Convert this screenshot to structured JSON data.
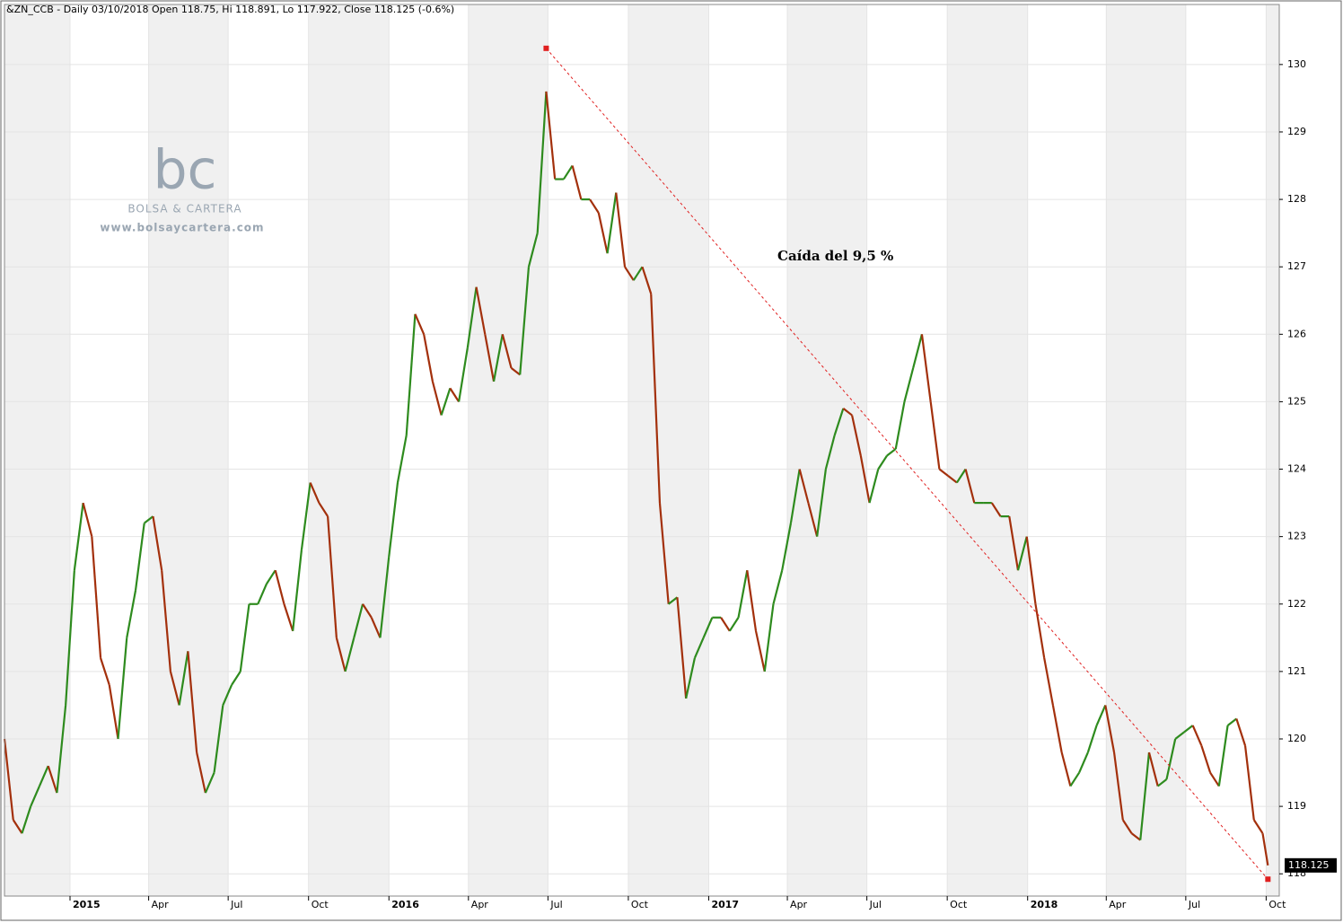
{
  "chart_data": {
    "type": "price-line",
    "title": "&ZN_CCB - Daily 03/10/2018 Open 118.75, Hi 118.891, Lo 117.922, Close 118.125 (-0.6%)",
    "annotation": "Caída del 9,5 %",
    "watermark": {
      "logo": "bc",
      "brand": "BOLSA & CARTERA",
      "url": "www.bolsaycartera.com"
    },
    "x": [
      -75,
      -65,
      -55,
      -45,
      -35,
      -25,
      -15,
      -5,
      5,
      15,
      25,
      35,
      45,
      55,
      65,
      75,
      85,
      95,
      105,
      115,
      125,
      135,
      145,
      155,
      165,
      175,
      185,
      195,
      205,
      215,
      225,
      235,
      245,
      255,
      265,
      275,
      285,
      295,
      305,
      315,
      325,
      335,
      345,
      355,
      365,
      375,
      385,
      395,
      405,
      415,
      425,
      435,
      445,
      455,
      465,
      475,
      485,
      495,
      505,
      515,
      525,
      535,
      545,
      555,
      565,
      575,
      585,
      595,
      605,
      615,
      625,
      635,
      645,
      655,
      665,
      675,
      685,
      695,
      705,
      715,
      725,
      735,
      745,
      755,
      765,
      775,
      785,
      795,
      805,
      815,
      825,
      835,
      845,
      855,
      865,
      875,
      885,
      895,
      905,
      915,
      925,
      935,
      945,
      955,
      965,
      975,
      985,
      995,
      1005,
      1015,
      1025,
      1035,
      1045,
      1055,
      1065,
      1075,
      1085,
      1095,
      1105,
      1115,
      1125,
      1135,
      1145,
      1155,
      1165,
      1175,
      1185,
      1195,
      1205,
      1215,
      1225,
      1235,
      1245,
      1255,
      1265,
      1275,
      1285,
      1295,
      1305,
      1315,
      1325,
      1335,
      1345,
      1355,
      1365,
      1371
    ],
    "series": [
      {
        "name": "&ZN_CCB",
        "values": [
          120,
          118.8,
          118.6,
          119.0,
          119.3,
          119.6,
          119.2,
          120.5,
          122.5,
          123.5,
          123.0,
          121.2,
          120.8,
          120.0,
          121.5,
          122.2,
          123.2,
          123.3,
          122.5,
          121.0,
          120.5,
          121.3,
          119.8,
          119.2,
          119.5,
          120.5,
          120.8,
          121.0,
          122.0,
          122.0,
          122.3,
          122.5,
          122.0,
          121.6,
          122.8,
          123.8,
          123.5,
          123.3,
          121.5,
          121.0,
          121.5,
          122.0,
          121.8,
          121.5,
          122.7,
          123.8,
          124.5,
          126.3,
          126.0,
          125.3,
          124.8,
          125.2,
          125.0,
          125.8,
          126.7,
          126.0,
          125.3,
          126.0,
          125.5,
          125.4,
          127.0,
          127.5,
          129.6,
          128.3,
          128.3,
          128.5,
          128.0,
          128.0,
          127.8,
          127.2,
          128.1,
          127.0,
          126.8,
          127.0,
          126.6,
          123.5,
          122.0,
          122.1,
          120.6,
          121.2,
          121.5,
          121.8,
          121.8,
          121.6,
          121.8,
          122.5,
          121.6,
          121.0,
          122.0,
          122.5,
          123.2,
          124.0,
          123.5,
          123.0,
          124.0,
          124.5,
          124.9,
          124.8,
          124.2,
          123.5,
          124.0,
          124.2,
          124.3,
          125.0,
          125.5,
          126.0,
          125.0,
          124.0,
          123.9,
          123.8,
          124.0,
          123.5,
          123.5,
          123.5,
          123.3,
          123.3,
          122.5,
          123.0,
          122.0,
          121.2,
          120.5,
          119.8,
          119.3,
          119.5,
          119.8,
          120.2,
          120.5,
          119.8,
          118.8,
          118.6,
          118.5,
          119.8,
          119.3,
          119.4,
          120.0,
          120.1,
          120.2,
          119.9,
          119.5,
          119.3,
          120.2,
          120.3,
          119.9,
          118.8,
          118.6,
          118.125
        ]
      }
    ],
    "up_color": "#2e8b1e",
    "down_color": "#a3300c",
    "trendline": {
      "x": [
        545,
        1371
      ],
      "y": [
        130.24,
        117.92
      ],
      "color": "#e02020"
    },
    "xlim": [
      -75,
      1384
    ],
    "xticks": [
      {
        "value": 0,
        "label": "2015"
      },
      {
        "value": 90,
        "label": "Apr"
      },
      {
        "value": 181,
        "label": "Jul"
      },
      {
        "value": 273,
        "label": "Oct"
      },
      {
        "value": 365,
        "label": "2016"
      },
      {
        "value": 456,
        "label": "Apr"
      },
      {
        "value": 547,
        "label": "Jul"
      },
      {
        "value": 639,
        "label": "Oct"
      },
      {
        "value": 731,
        "label": "2017"
      },
      {
        "value": 821,
        "label": "Apr"
      },
      {
        "value": 912,
        "label": "Jul"
      },
      {
        "value": 1004,
        "label": "Oct"
      },
      {
        "value": 1096,
        "label": "2018"
      },
      {
        "value": 1186,
        "label": "Apr"
      },
      {
        "value": 1277,
        "label": "Jul"
      },
      {
        "value": 1369,
        "label": "Oct"
      }
    ],
    "ylim": [
      117.67,
      130.89
    ],
    "yticks": [
      118,
      119,
      120,
      121,
      122,
      123,
      124,
      125,
      126,
      127,
      128,
      129,
      130
    ],
    "grid": true
  }
}
